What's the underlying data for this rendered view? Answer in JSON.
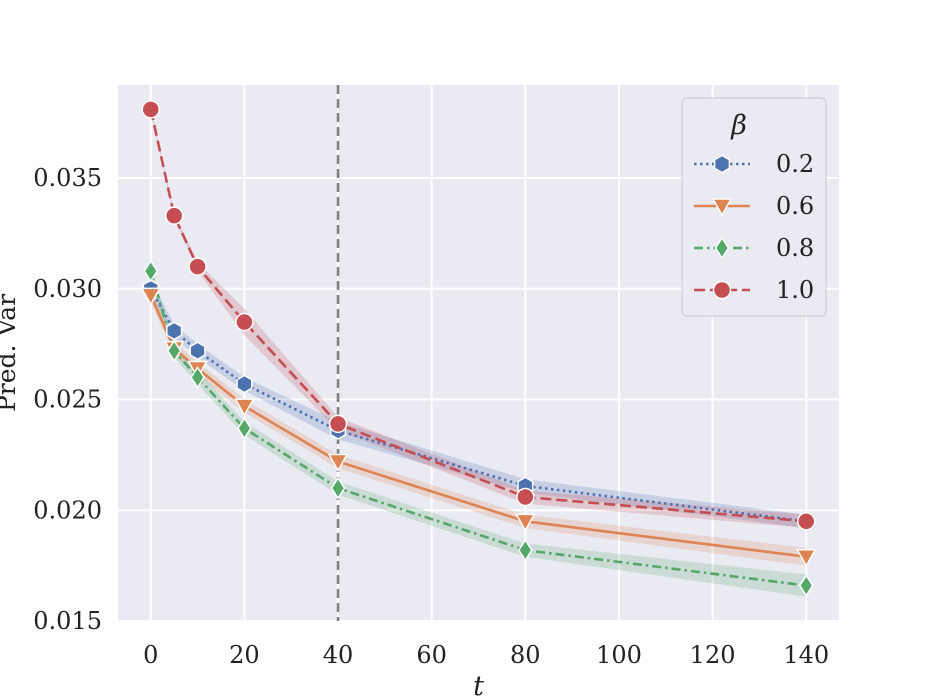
{
  "chart_data": {
    "type": "line",
    "title": "",
    "xlabel": "t",
    "ylabel": "Pred. Var",
    "xlim": [
      -7,
      147
    ],
    "ylim": [
      0.015,
      0.0392
    ],
    "xticks": [
      0,
      20,
      40,
      60,
      80,
      100,
      120,
      140
    ],
    "xtick_labels": [
      "0",
      "20",
      "40",
      "60",
      "80",
      "100",
      "120",
      "140"
    ],
    "yticks": [
      0.015,
      0.02,
      0.025,
      0.03,
      0.035
    ],
    "ytick_labels": [
      "0.015",
      "0.020",
      "0.025",
      "0.030",
      "0.035"
    ],
    "grid": true,
    "background": "#EAEAF2",
    "vline": {
      "x": 40,
      "style": "dashed",
      "color": "#808080"
    },
    "legend": {
      "title": "β",
      "position": "top-right"
    },
    "x": [
      0,
      5,
      10,
      20,
      40,
      80,
      140
    ],
    "series": [
      {
        "name": "0.2",
        "color": "#4C72B0",
        "dash": "dotted",
        "marker": "hexagon",
        "values": [
          0.03,
          0.0281,
          0.0272,
          0.0257,
          0.0236,
          0.0211,
          0.0195
        ],
        "band": [
          0.0004,
          0.0003,
          0.0003,
          0.0003,
          0.0004,
          0.0003,
          0.0003
        ]
      },
      {
        "name": "0.6",
        "color": "#DD8452",
        "dash": "solid",
        "marker": "triangle-down",
        "values": [
          0.0297,
          0.0273,
          0.0264,
          0.0247,
          0.0222,
          0.0195,
          0.0179
        ],
        "band": [
          0.0003,
          0.0003,
          0.0003,
          0.0003,
          0.0003,
          0.0003,
          0.0004
        ]
      },
      {
        "name": "0.8",
        "color": "#55A868",
        "dash": "dashdot",
        "marker": "diamond",
        "values": [
          0.0308,
          0.0272,
          0.026,
          0.0237,
          0.021,
          0.0182,
          0.0166
        ],
        "band": [
          0.0003,
          0.0003,
          0.0003,
          0.0003,
          0.0003,
          0.0003,
          0.0005
        ]
      },
      {
        "name": "1.0",
        "color": "#C44E52",
        "dash": "dashed",
        "marker": "circle",
        "values": [
          0.0381,
          0.0333,
          0.031,
          0.0285,
          0.0239,
          0.0206,
          0.0195
        ],
        "band": [
          0.0001,
          0.0001,
          0.0002,
          0.0006,
          0.0003,
          0.0003,
          0.0003
        ]
      }
    ]
  }
}
